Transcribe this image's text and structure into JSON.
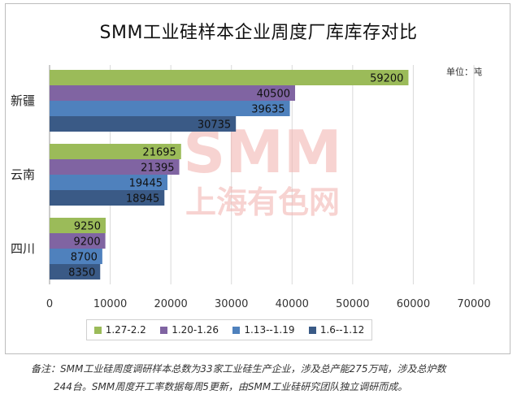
{
  "title": "SMM工业硅样本企业周度厂库库存对比",
  "unit": "单位：吨",
  "watermark": {
    "line1": "SMM",
    "line2": "上海有色网"
  },
  "colors": {
    "series": [
      "#9bbb59",
      "#8064a2",
      "#4f81bd",
      "#3a5a86"
    ],
    "watermark": "#f2b0ad",
    "label_text": "#111111"
  },
  "chart_data": {
    "type": "bar",
    "orientation": "horizontal",
    "categories": [
      "新疆",
      "云南",
      "四川"
    ],
    "series": [
      {
        "name": "1.27-2.2",
        "values": [
          59200,
          21695,
          9250
        ]
      },
      {
        "name": "1.20-1.26",
        "values": [
          40500,
          21395,
          9200
        ]
      },
      {
        "name": "1.13--1.19",
        "values": [
          39635,
          19445,
          8700
        ]
      },
      {
        "name": "1.6--1.12",
        "values": [
          30735,
          18945,
          8350
        ]
      }
    ],
    "xlim": [
      0,
      70000
    ],
    "xticks": [
      0,
      10000,
      20000,
      30000,
      40000,
      50000,
      60000,
      70000
    ],
    "grid": true,
    "legend_position": "bottom",
    "legend_order": [
      0,
      1,
      2,
      3
    ]
  },
  "note": {
    "line1": "备注：SMM工业硅周度调研样本总数为33家工业硅生产企业，涉及总产能275万吨，涉及总炉数",
    "line2": "244台。SMM周度开工率数据每周5更新，由SMM工业硅研究团队独立调研而成。"
  }
}
